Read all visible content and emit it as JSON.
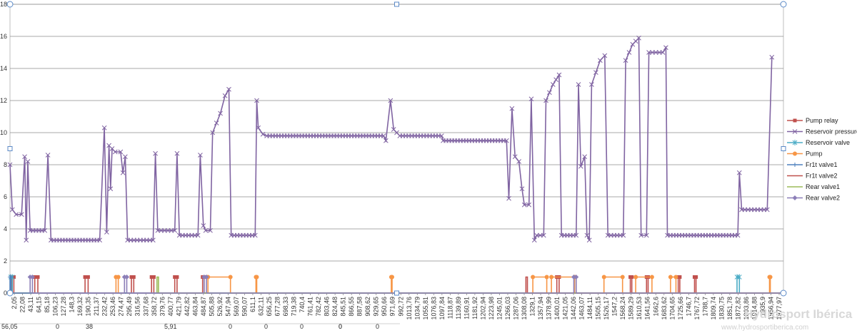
{
  "chart_data": {
    "type": "line",
    "title": "",
    "xlabel": "",
    "ylabel": "",
    "ylim": [
      0,
      18
    ],
    "y_ticks": [
      0,
      2,
      4,
      6,
      8,
      10,
      12,
      14,
      16,
      18
    ],
    "grid": true,
    "legend_position": "right",
    "x_tick_labels": [
      "2,05",
      "22,08",
      "43,11",
      "64,15",
      "85,18",
      "106,23",
      "127,28",
      "148,3",
      "169,32",
      "190,35",
      "211,37",
      "232,42",
      "253,46",
      "274,47",
      "295,49",
      "316,56",
      "337,68",
      "358,72",
      "379,76",
      "400,77",
      "421,79",
      "442,82",
      "463,84",
      "484,87",
      "505,88",
      "526,92",
      "547,94",
      "569,07",
      "590,07",
      "611,1",
      "632,11",
      "656,25",
      "677,28",
      "698,33",
      "719,38",
      "740,4",
      "761,41",
      "782,42",
      "803,46",
      "824,48",
      "845,51",
      "866,55",
      "887,58",
      "908,62",
      "929,65",
      "950,66",
      "971,69",
      "992,72",
      "1013,76",
      "1034,79",
      "1055,81",
      "1076,83",
      "1097,84",
      "1118,87",
      "1139,89",
      "1160,91",
      "1181,92",
      "1202,94",
      "1223,98",
      "1245,01",
      "1266,03",
      "1287,06",
      "1308,08",
      "1329,1",
      "1357,94",
      "1378,99",
      "1400,01",
      "1421,05",
      "1442,06",
      "1463,07",
      "1484,11",
      "1505,15",
      "1526,17",
      "1547,2",
      "1568,24",
      "1589,29",
      "1610,53",
      "1641,56",
      "1662,6",
      "1683,62",
      "1704,65",
      "1725,66",
      "1746,7",
      "1767,72",
      "1788,7",
      "1809,74",
      "1830,75",
      "1851,78",
      "1872,82",
      "1893,86",
      "1914,88",
      "1935,9",
      "1956,94",
      "1977,97"
    ],
    "bottom_row_values": [
      "56,05",
      "0",
      "38",
      "5,91",
      "0",
      "0",
      "0",
      "0",
      "0",
      "0",
      ""
    ],
    "series": [
      {
        "name": "Pump relay",
        "color": "#c0504d",
        "marker": "square",
        "segments": [
          [
            0.2,
            0
          ],
          [
            0.2,
            1
          ],
          [
            0.5,
            1
          ],
          [
            0.5,
            0
          ],
          [
            3.2,
            0
          ],
          [
            3.2,
            1
          ],
          [
            3.6,
            1
          ],
          [
            3.6,
            0
          ],
          [
            9.7,
            0
          ],
          [
            9.7,
            1
          ],
          [
            10.1,
            1
          ],
          [
            10.1,
            0
          ],
          [
            15.7,
            0
          ],
          [
            15.7,
            1
          ],
          [
            16.0,
            1
          ],
          [
            16.0,
            0
          ],
          [
            18.3,
            0
          ],
          [
            18.3,
            1
          ],
          [
            18.6,
            1
          ],
          [
            18.6,
            0
          ],
          [
            21.3,
            0
          ],
          [
            21.3,
            1
          ],
          [
            21.6,
            1
          ],
          [
            21.6,
            0
          ],
          [
            24.9,
            0
          ],
          [
            24.9,
            1
          ],
          [
            25.1,
            1
          ],
          [
            25.1,
            0
          ],
          [
            70.7,
            0
          ],
          [
            70.7,
            1
          ],
          [
            71.0,
            1
          ],
          [
            71.0,
            0
          ],
          [
            80.2,
            0
          ],
          [
            80.2,
            1
          ],
          [
            80.4,
            1
          ],
          [
            80.4,
            0
          ],
          [
            82.3,
            0
          ],
          [
            82.3,
            1
          ],
          [
            82.5,
            1
          ],
          [
            82.5,
            0
          ],
          [
            86.4,
            0
          ],
          [
            86.4,
            1
          ],
          [
            86.6,
            1
          ],
          [
            86.6,
            0
          ],
          [
            88.5,
            0
          ],
          [
            88.5,
            1
          ],
          [
            88.7,
            1
          ],
          [
            88.7,
            0
          ],
          [
            100,
            0
          ]
        ]
      },
      {
        "name": "Reservoir pressure",
        "color": "#8064a2",
        "marker": "x",
        "points": [
          [
            0,
            8
          ],
          [
            0.3,
            5.2
          ],
          [
            0.8,
            4.9
          ],
          [
            1.5,
            4.9
          ],
          [
            1.9,
            8.5
          ],
          [
            2.1,
            3.3
          ],
          [
            2.3,
            8.2
          ],
          [
            2.6,
            3.9
          ],
          [
            4.5,
            3.9
          ],
          [
            4.9,
            8.6
          ],
          [
            5.3,
            3.3
          ],
          [
            11.6,
            3.3
          ],
          [
            12.2,
            10.3
          ],
          [
            12.5,
            3.8
          ],
          [
            12.8,
            9.2
          ],
          [
            13.0,
            6.5
          ],
          [
            13.2,
            9.0
          ],
          [
            13.6,
            8.8
          ],
          [
            14.3,
            8.8
          ],
          [
            14.6,
            7.5
          ],
          [
            14.9,
            8.5
          ],
          [
            15.2,
            3.3
          ],
          [
            18.5,
            3.3
          ],
          [
            18.8,
            8.7
          ],
          [
            19.1,
            3.9
          ],
          [
            21.3,
            3.9
          ],
          [
            21.6,
            8.7
          ],
          [
            21.9,
            3.6
          ],
          [
            24.3,
            3.6
          ],
          [
            24.6,
            8.6
          ],
          [
            25.0,
            4.2
          ],
          [
            25.3,
            3.9
          ],
          [
            25.9,
            3.9
          ],
          [
            26.2,
            10.0
          ],
          [
            27.2,
            11.2
          ],
          [
            27.8,
            12.3
          ],
          [
            28.3,
            12.7
          ],
          [
            28.6,
            3.6
          ],
          [
            31.7,
            3.6
          ],
          [
            31.9,
            12.0
          ],
          [
            32.1,
            10.3
          ],
          [
            32.7,
            9.9
          ],
          [
            33.2,
            9.8
          ],
          [
            48.3,
            9.8
          ],
          [
            48.6,
            9.5
          ],
          [
            49.2,
            12.0
          ],
          [
            49.6,
            10.2
          ],
          [
            50.4,
            9.8
          ],
          [
            55.8,
            9.8
          ],
          [
            56.0,
            9.5
          ],
          [
            64.2,
            9.5
          ],
          [
            64.5,
            5.9
          ],
          [
            64.9,
            11.5
          ],
          [
            65.3,
            8.5
          ],
          [
            65.8,
            8.2
          ],
          [
            66.2,
            6.5
          ],
          [
            66.5,
            5.5
          ],
          [
            67.1,
            5.5
          ],
          [
            67.4,
            12.1
          ],
          [
            67.8,
            3.3
          ],
          [
            68.1,
            3.6
          ],
          [
            69.0,
            3.6
          ],
          [
            69.3,
            12.0
          ],
          [
            70.2,
            13.0
          ],
          [
            71.0,
            13.6
          ],
          [
            71.3,
            3.6
          ],
          [
            73.2,
            3.6
          ],
          [
            73.5,
            13.0
          ],
          [
            73.8,
            7.9
          ],
          [
            74.3,
            8.5
          ],
          [
            74.6,
            3.6
          ],
          [
            74.9,
            3.3
          ],
          [
            75.2,
            13.0
          ],
          [
            76.3,
            14.5
          ],
          [
            76.9,
            14.8
          ],
          [
            77.3,
            3.6
          ],
          [
            79.3,
            3.6
          ],
          [
            79.6,
            14.5
          ],
          [
            80.5,
            15.5
          ],
          [
            81.3,
            15.9
          ],
          [
            81.6,
            3.6
          ],
          [
            82.3,
            3.6
          ],
          [
            82.6,
            15.0
          ],
          [
            84.4,
            15.0
          ],
          [
            84.8,
            15.3
          ],
          [
            85.0,
            3.6
          ],
          [
            94.1,
            3.6
          ],
          [
            94.3,
            7.5
          ],
          [
            94.6,
            5.2
          ],
          [
            97.9,
            5.2
          ],
          [
            98.5,
            14.7
          ]
        ]
      },
      {
        "name": "Reservoir valve",
        "color": "#4bacc6",
        "marker": "star",
        "segments": [
          [
            0.1,
            0
          ],
          [
            0.1,
            1
          ],
          [
            0.3,
            1
          ],
          [
            0.3,
            0
          ],
          [
            94.0,
            0
          ],
          [
            94.0,
            1
          ],
          [
            94.3,
            1
          ],
          [
            94.3,
            0
          ],
          [
            100,
            0
          ]
        ]
      },
      {
        "name": "Pump",
        "color": "#f79646",
        "marker": "circle",
        "segments": [
          [
            0,
            0
          ],
          [
            13.7,
            0
          ],
          [
            13.7,
            1
          ],
          [
            14.0,
            1
          ],
          [
            14.0,
            0
          ],
          [
            25.6,
            0
          ],
          [
            25.6,
            1
          ],
          [
            28.5,
            1
          ],
          [
            28.5,
            0
          ],
          [
            31.8,
            0
          ],
          [
            31.8,
            1
          ],
          [
            31.9,
            1
          ],
          [
            31.9,
            0
          ],
          [
            49.3,
            0
          ],
          [
            49.3,
            1
          ],
          [
            49.4,
            1
          ],
          [
            49.4,
            0
          ],
          [
            67.6,
            0
          ],
          [
            67.6,
            1
          ],
          [
            69.4,
            1
          ],
          [
            69.4,
            0
          ],
          [
            70.0,
            0
          ],
          [
            70.0,
            1
          ],
          [
            73.0,
            1
          ],
          [
            73.0,
            0
          ],
          [
            76.8,
            0
          ],
          [
            76.8,
            1
          ],
          [
            79.2,
            1
          ],
          [
            79.2,
            0
          ],
          [
            80.9,
            0
          ],
          [
            80.9,
            1
          ],
          [
            83.0,
            1
          ],
          [
            83.0,
            0
          ],
          [
            85.4,
            0
          ],
          [
            85.4,
            1
          ],
          [
            86.1,
            1
          ],
          [
            86.1,
            0
          ],
          [
            98.2,
            0
          ],
          [
            98.2,
            1
          ],
          [
            98.3,
            1
          ],
          [
            98.3,
            0
          ],
          [
            100,
            0
          ]
        ]
      },
      {
        "name": "Fr1t valve1",
        "color": "#4f81bd",
        "marker": "plus",
        "segments": [
          [
            0.0,
            0
          ],
          [
            0.0,
            1
          ],
          [
            0.1,
            1
          ],
          [
            0.1,
            0
          ],
          [
            100,
            0
          ]
        ]
      },
      {
        "name": "Fr1t valve2",
        "color": "#c0504d",
        "marker": "none",
        "segments": [
          [
            66.7,
            0
          ],
          [
            66.7,
            1
          ],
          [
            66.9,
            1
          ],
          [
            66.9,
            0
          ],
          [
            100,
            0
          ]
        ]
      },
      {
        "name": "Rear valve1",
        "color": "#9bbb59",
        "marker": "none",
        "segments": [
          [
            19.0,
            0
          ],
          [
            19.0,
            1
          ],
          [
            19.2,
            1
          ],
          [
            19.2,
            0
          ],
          [
            100,
            0
          ]
        ]
      },
      {
        "name": "Rear valve2",
        "color": "#8c7fb8",
        "marker": "diamond",
        "segments": [
          [
            2.6,
            0
          ],
          [
            2.6,
            1
          ],
          [
            2.9,
            1
          ],
          [
            2.9,
            0
          ],
          [
            14.8,
            0
          ],
          [
            14.8,
            1
          ],
          [
            15.1,
            1
          ],
          [
            15.1,
            0
          ],
          [
            25.1,
            0
          ],
          [
            25.1,
            1
          ],
          [
            25.4,
            1
          ],
          [
            25.4,
            0
          ],
          [
            72.9,
            0
          ],
          [
            72.9,
            1
          ],
          [
            73.2,
            1
          ],
          [
            73.2,
            0
          ],
          [
            100,
            0
          ]
        ]
      }
    ]
  },
  "watermark": {
    "line1": "Hydrosport Ibérica",
    "line2": "www.hydrosportiberica.com"
  }
}
